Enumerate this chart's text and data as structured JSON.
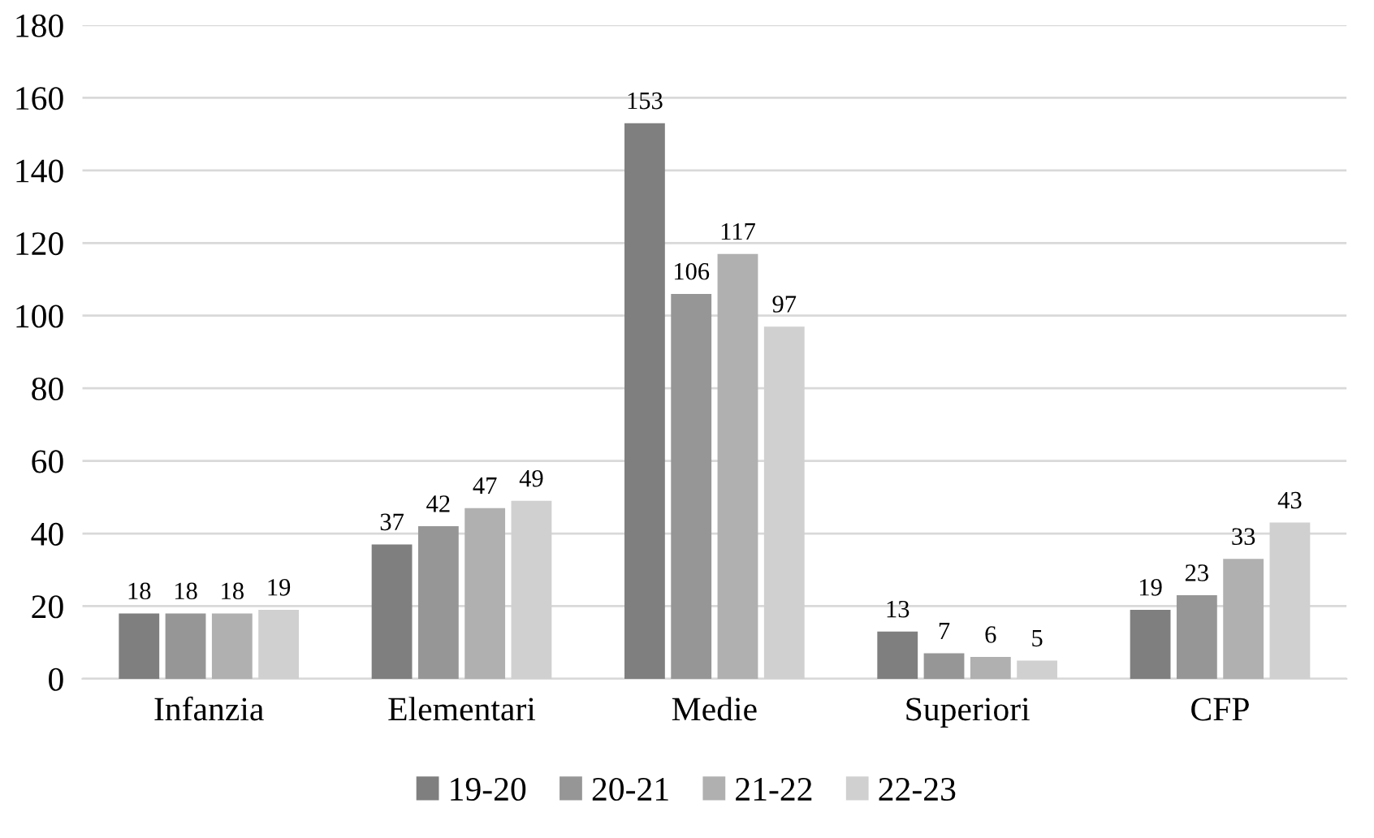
{
  "chart_data": {
    "type": "bar",
    "categories": [
      "Infanzia",
      "Elementari",
      "Medie",
      "Superiori",
      "CFP"
    ],
    "series": [
      {
        "name": "19-20",
        "color": "#7f7f7f",
        "values": [
          18,
          37,
          153,
          13,
          19
        ]
      },
      {
        "name": "20-21",
        "color": "#969696",
        "values": [
          18,
          42,
          106,
          7,
          23
        ]
      },
      {
        "name": "21-22",
        "color": "#b0b0b0",
        "values": [
          18,
          47,
          117,
          6,
          33
        ]
      },
      {
        "name": "22-23",
        "color": "#d0d0d0",
        "values": [
          19,
          49,
          97,
          5,
          43
        ]
      }
    ],
    "ylim": [
      0,
      180
    ],
    "yticks": [
      0,
      20,
      40,
      60,
      80,
      100,
      120,
      140,
      160,
      180
    ],
    "grid": "y",
    "legend": "bottom",
    "data_labels": true
  }
}
